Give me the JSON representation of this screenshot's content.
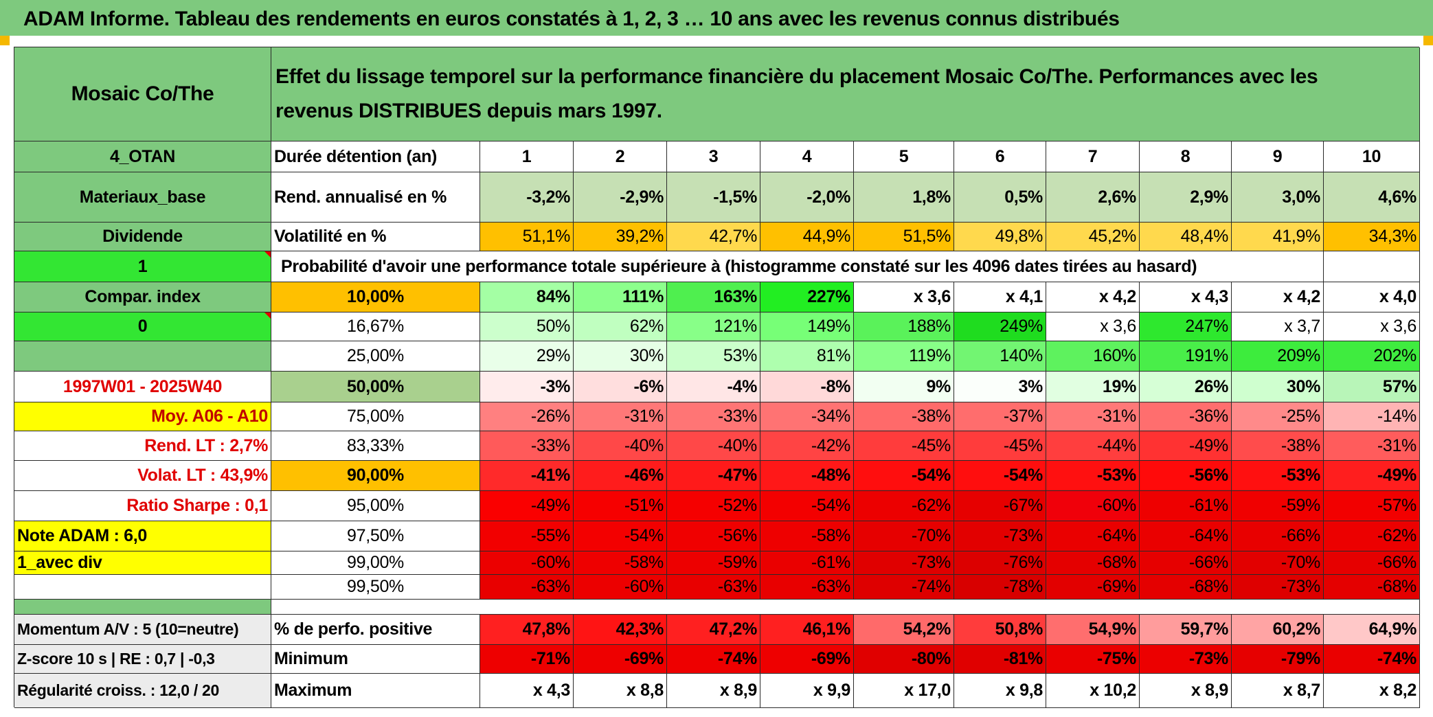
{
  "header": {
    "title": "ADAM Informe. Tableau des rendements en euros constatés à 1, 2, 3 … 10 ans avec les revenus connus distribués"
  },
  "left": {
    "fund": "Mosaic Co/The",
    "code": "4_OTAN",
    "sector": "Materiaux_base",
    "type": "Dividende",
    "flag_one": "1",
    "compar": "Compar. index",
    "flag_zero": "0",
    "period": "1997W01 - 2025W40",
    "moy": "Moy. A06 - A10",
    "rend_lt": "Rend. LT :   2,7%",
    "volat_lt": "Volat. LT :   43,9%",
    "sharpe": "Ratio Sharpe :    0,1",
    "note": "Note ADAM : 6,0",
    "avec_div": "1_avec div",
    "momentum": "Momentum A/V : 5 (10=neutre)",
    "zscore": "Z-score 10 s | RE : 0,7 | -0,3",
    "regularite": "Régularité croiss. : 12,0 / 20"
  },
  "main": {
    "description": "Effet du lissage temporel sur la performance financière du placement Mosaic Co/The. Performances avec les revenus DISTRIBUES depuis mars 1997.",
    "duree_label": "Durée détention (an)",
    "years": [
      "1",
      "2",
      "3",
      "4",
      "5",
      "6",
      "7",
      "8",
      "9",
      "10"
    ],
    "rend_label": "Rend. annualisé en %",
    "rend": [
      "-3,2%",
      "-2,9%",
      "-1,5%",
      "-2,0%",
      "1,8%",
      "0,5%",
      "2,6%",
      "2,9%",
      "3,0%",
      "4,6%"
    ],
    "vol_label": "Volatilité en %",
    "vol": [
      "51,1%",
      "39,2%",
      "42,7%",
      "44,9%",
      "51,5%",
      "49,8%",
      "45,2%",
      "48,4%",
      "41,9%",
      "34,3%"
    ],
    "proba_text": "Probabilité d'avoir une performance totale supérieure à (histogramme constaté sur les 4096 dates tirées au hasard)",
    "quantiles": [
      {
        "p": "10,00%",
        "v": [
          "84%",
          "111%",
          "163%",
          "227%",
          "x 3,6",
          "x 4,1",
          "x 4,2",
          "x 4,3",
          "x 4,2",
          "x 4,0"
        ]
      },
      {
        "p": "16,67%",
        "v": [
          "50%",
          "62%",
          "121%",
          "149%",
          "188%",
          "249%",
          "x 3,6",
          "247%",
          "x 3,7",
          "x 3,6"
        ]
      },
      {
        "p": "25,00%",
        "v": [
          "29%",
          "30%",
          "53%",
          "81%",
          "119%",
          "140%",
          "160%",
          "191%",
          "209%",
          "202%"
        ]
      },
      {
        "p": "50,00%",
        "v": [
          "-3%",
          "-6%",
          "-4%",
          "-8%",
          "9%",
          "3%",
          "19%",
          "26%",
          "30%",
          "57%"
        ]
      },
      {
        "p": "75,00%",
        "v": [
          "-26%",
          "-31%",
          "-33%",
          "-34%",
          "-38%",
          "-37%",
          "-31%",
          "-36%",
          "-25%",
          "-14%"
        ]
      },
      {
        "p": "83,33%",
        "v": [
          "-33%",
          "-40%",
          "-40%",
          "-42%",
          "-45%",
          "-45%",
          "-44%",
          "-49%",
          "-38%",
          "-31%"
        ]
      },
      {
        "p": "90,00%",
        "v": [
          "-41%",
          "-46%",
          "-47%",
          "-48%",
          "-54%",
          "-54%",
          "-53%",
          "-56%",
          "-53%",
          "-49%"
        ]
      },
      {
        "p": "95,00%",
        "v": [
          "-49%",
          "-51%",
          "-52%",
          "-54%",
          "-62%",
          "-67%",
          "-60%",
          "-61%",
          "-59%",
          "-57%"
        ]
      },
      {
        "p": "97,50%",
        "v": [
          "-55%",
          "-54%",
          "-56%",
          "-58%",
          "-70%",
          "-73%",
          "-64%",
          "-64%",
          "-66%",
          "-62%"
        ]
      },
      {
        "p": "99,00%",
        "v": [
          "-60%",
          "-58%",
          "-59%",
          "-61%",
          "-73%",
          "-76%",
          "-68%",
          "-66%",
          "-70%",
          "-66%"
        ]
      },
      {
        "p": "99,50%",
        "v": [
          "-63%",
          "-60%",
          "-63%",
          "-63%",
          "-74%",
          "-78%",
          "-69%",
          "-68%",
          "-73%",
          "-68%"
        ]
      }
    ],
    "pos_label": "% de perfo. positive",
    "pos": [
      "47,8%",
      "42,3%",
      "47,2%",
      "46,1%",
      "54,2%",
      "50,8%",
      "54,9%",
      "59,7%",
      "60,2%",
      "64,9%"
    ],
    "min_label": "Minimum",
    "min": [
      "-71%",
      "-69%",
      "-74%",
      "-69%",
      "-80%",
      "-81%",
      "-75%",
      "-73%",
      "-79%",
      "-74%"
    ],
    "max_label": "Maximum",
    "max": [
      "x 4,3",
      "x 8,8",
      "x 8,9",
      "x 9,9",
      "x 17,0",
      "x 9,8",
      "x 10,2",
      "x 8,9",
      "x 8,7",
      "x 8,2"
    ]
  },
  "colors": {
    "header_green": "#7ec97e",
    "bright_green": "#33e633",
    "orange": "#ffc000",
    "yellow": "#ffff00",
    "light_green": "#c6e0b4",
    "alert_red": "#e00000",
    "quantile_colors": [
      [
        "#a4ffa4",
        "#8cff8c",
        "#4fef4f",
        "#22ee22",
        "#ffffff",
        "#ffffff",
        "#ffffff",
        "#ffffff",
        "#ffffff",
        "#ffffff"
      ],
      [
        "#ccffcc",
        "#c0ffc0",
        "#88ff88",
        "#77ff77",
        "#5af25a",
        "#1fdc1f",
        "#ffffff",
        "#2ee82e",
        "#ffffff",
        "#ffffff"
      ],
      [
        "#e9ffe9",
        "#e6ffe6",
        "#cbffcb",
        "#aeffae",
        "#88ff88",
        "#72f572",
        "#5ef25e",
        "#49ee49",
        "#3dec3d",
        "#3fec3f"
      ],
      [
        "#ffecec",
        "#ffdede",
        "#ffe6e6",
        "#ffd9d9",
        "#f2fff2",
        "#fbfffb",
        "#e1ffe1",
        "#d6ffd6",
        "#cfffcf",
        "#b8f5b8"
      ],
      [
        "#ff8080",
        "#ff7878",
        "#ff7575",
        "#ff7373",
        "#ff6a6a",
        "#ff6d6d",
        "#ff7878",
        "#ff6e6e",
        "#ff8a8a",
        "#ffb4b4"
      ],
      [
        "#ff5a5a",
        "#ff4848",
        "#ff4848",
        "#ff4444",
        "#ff3c3c",
        "#ff3c3c",
        "#ff3e3e",
        "#ff3232",
        "#ff4c4c",
        "#ff5c5c"
      ],
      [
        "#ff2a2a",
        "#ff1c1c",
        "#ff1a1a",
        "#ff1818",
        "#ff0e0e",
        "#ff0e0e",
        "#ff1010",
        "#ff0a0a",
        "#ff1010",
        "#ff1e1e"
      ],
      [
        "#fa0000",
        "#f60000",
        "#f50000",
        "#f30000",
        "#ec0000",
        "#e60000",
        "#f0000a",
        "#ee0000",
        "#f00000",
        "#f20000"
      ],
      [
        "#f20000",
        "#f30000",
        "#f00000",
        "#ee0000",
        "#e60000",
        "#e20000",
        "#ea0000",
        "#ea0000",
        "#e80000",
        "#ec0000"
      ],
      [
        "#ec0000",
        "#ee0000",
        "#ed0000",
        "#ea0000",
        "#e00000",
        "#dc0000",
        "#e40000",
        "#e60000",
        "#e20000",
        "#e60000"
      ],
      [
        "#e80000",
        "#ec0000",
        "#e80000",
        "#e80000",
        "#de0000",
        "#d80000",
        "#e20000",
        "#e40000",
        "#de0000",
        "#e40000"
      ]
    ],
    "rend_colors": [
      "#c6e0b4",
      "#c6e0b4",
      "#c6e0b4",
      "#c6e0b4",
      "#c6e0b4",
      "#c6e0b4",
      "#c6e0b4",
      "#c6e0b4",
      "#c6e0b4",
      "#c6e0b4"
    ],
    "vol_colors": [
      "#ffc000",
      "#ffc000",
      "#ffd94d",
      "#ffc000",
      "#ffc000",
      "#ffd94d",
      "#ffd94d",
      "#ffd94d",
      "#ffd94d",
      "#ffc000"
    ],
    "pos_colors": [
      "#ff2020",
      "#ff1414",
      "#ff2020",
      "#ff2020",
      "#ff6a6a",
      "#ff3c3c",
      "#ff6e6e",
      "#ff9c9c",
      "#ffa4a4",
      "#ffc8c8"
    ],
    "min_colors": [
      "#ee0000",
      "#ee0000",
      "#ee0000",
      "#ee0000",
      "#e00000",
      "#e00000",
      "#ea0000",
      "#ec0000",
      "#e60000",
      "#ea0000"
    ]
  }
}
